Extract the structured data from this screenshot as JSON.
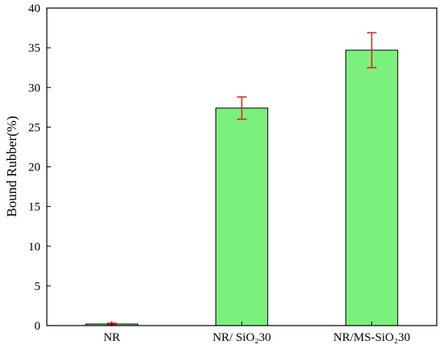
{
  "chart_data": {
    "type": "bar",
    "title": "",
    "xlabel": "",
    "ylabel": "Bound Rubber(%)",
    "categories": [
      "NR",
      "NR/ SiO₂30",
      "NR/MS-SiO₂30"
    ],
    "values": [
      0.2,
      27.4,
      34.7
    ],
    "errors": [
      0.1,
      1.4,
      2.2
    ],
    "ylim": [
      0,
      40
    ],
    "yticks": [
      0,
      5,
      10,
      15,
      20,
      25,
      30,
      35,
      40
    ],
    "grid": false,
    "legend": "none",
    "colors": {
      "bar_fill": "#7cf07c",
      "bar_stroke": "#000000",
      "error_bar": "#e02020",
      "axis": "#000000"
    }
  }
}
